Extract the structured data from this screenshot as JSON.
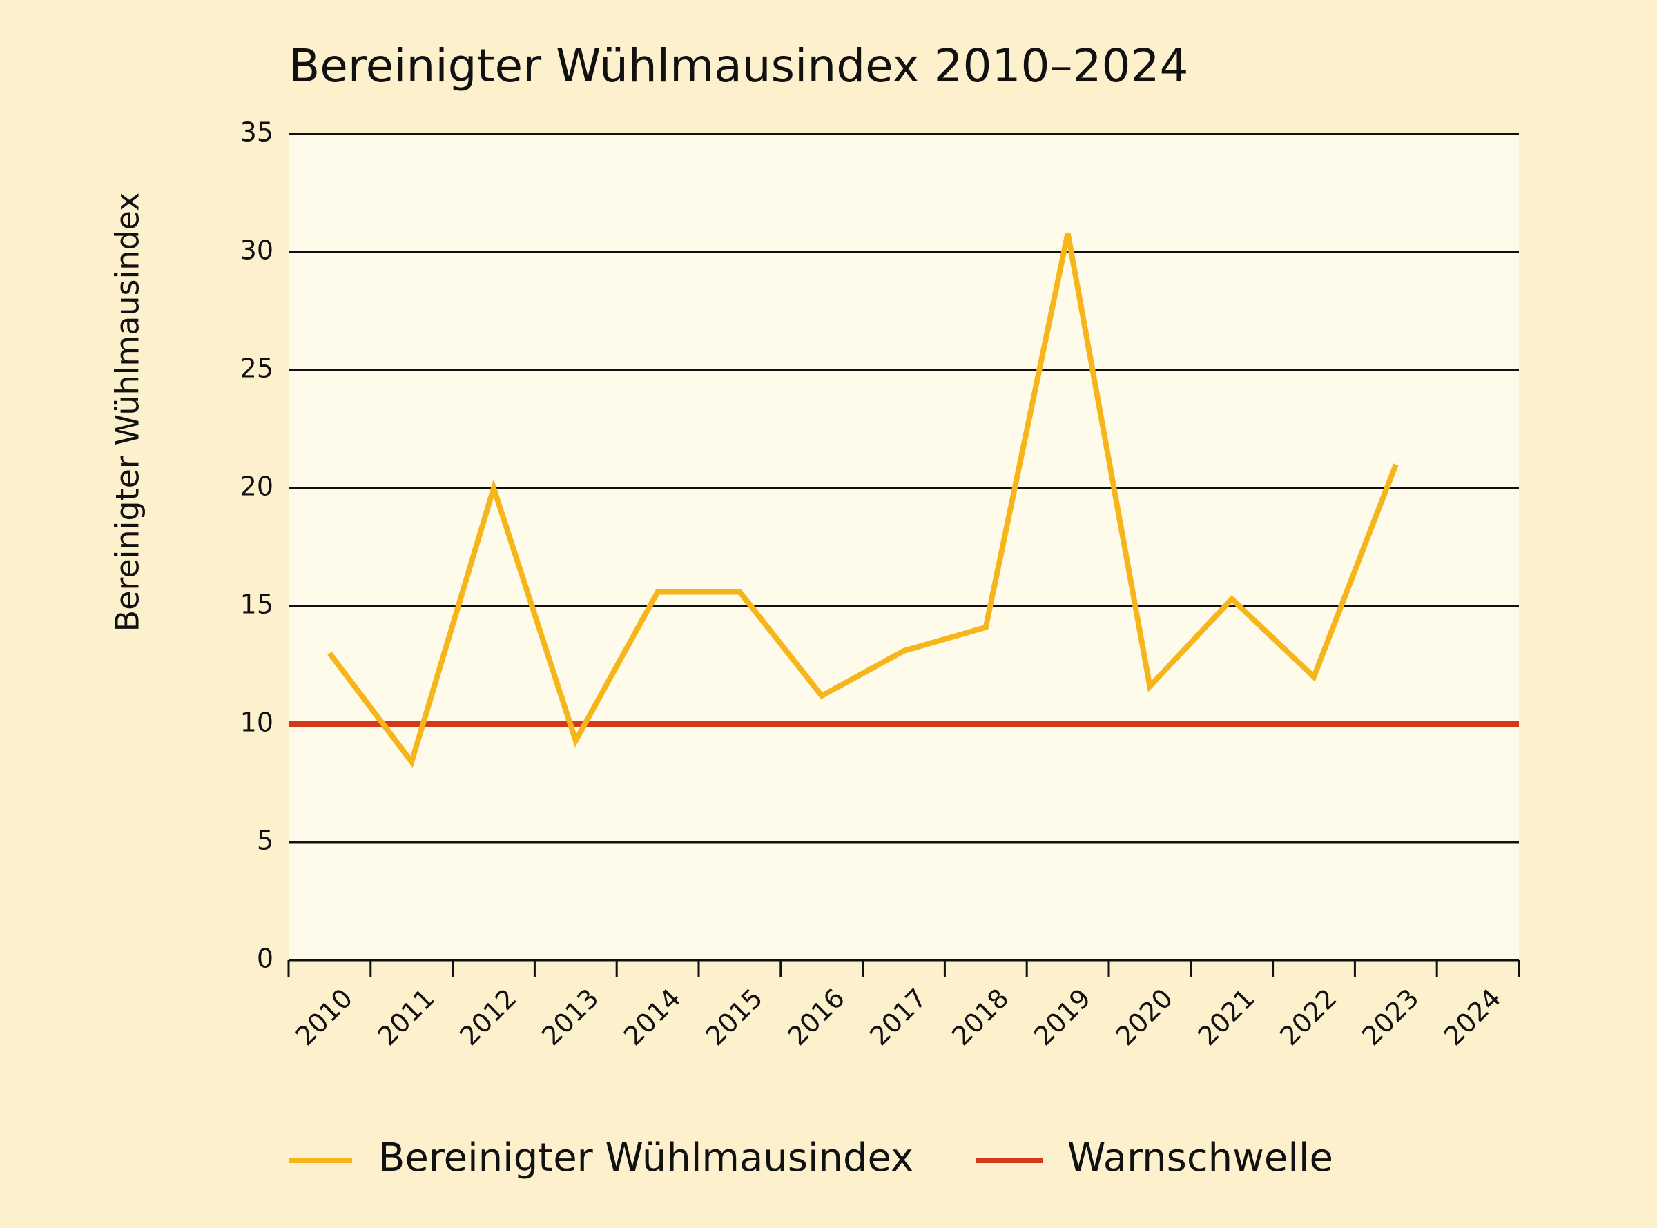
{
  "chart_data": {
    "type": "line",
    "title": "Bereinigter Wühlmausindex 2010–2024",
    "y_label": "Bereinigter Wühlmausindex",
    "categories": [
      "2010",
      "2011",
      "2012",
      "2013",
      "2014",
      "2015",
      "2016",
      "2017",
      "2018",
      "2019",
      "2020",
      "2021",
      "2022",
      "2023",
      "2024"
    ],
    "series": [
      {
        "name": "Bereinigter Wühlmausindex",
        "color": "#f5b51b",
        "values": [
          13,
          8.4,
          20,
          9.3,
          15.6,
          15.6,
          11.2,
          13.1,
          14.1,
          30.8,
          11.6,
          15.3,
          12,
          21,
          null
        ]
      }
    ],
    "threshold": {
      "name": "Warnschwelle",
      "color": "#d43a1a",
      "value": 10
    },
    "ylim": [
      0,
      35
    ],
    "yticks": [
      0,
      5,
      10,
      15,
      20,
      25,
      30,
      35
    ],
    "grid": true
  }
}
